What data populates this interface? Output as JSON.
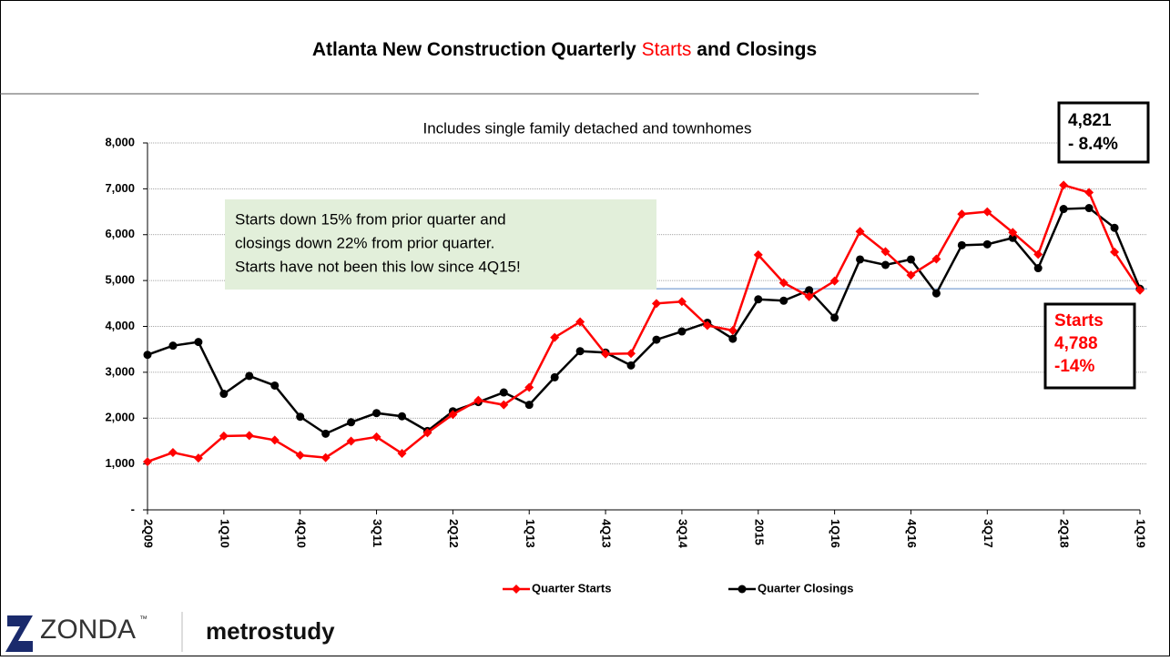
{
  "chart_data": {
    "type": "line",
    "title_parts": [
      "Atlanta New Construction Quarterly",
      "Starts",
      "and Closings"
    ],
    "subtitle": "Includes single family detached and townhomes",
    "categories": [
      "2Q09",
      null,
      null,
      "1Q10",
      null,
      null,
      "4Q10",
      null,
      null,
      "3Q11",
      null,
      null,
      "2Q12",
      null,
      null,
      "1Q13",
      null,
      null,
      "4Q13",
      null,
      null,
      "3Q14",
      null,
      null,
      "2015",
      null,
      null,
      "1Q16",
      null,
      null,
      "4Q16",
      null,
      null,
      "3Q17",
      null,
      null,
      "2Q18",
      null,
      null,
      "1Q19"
    ],
    "series": [
      {
        "name": "Quarter Starts",
        "color": "#ff0000",
        "marker": "diamond",
        "values": [
          1050,
          1250,
          1130,
          1610,
          1620,
          1520,
          1190,
          1140,
          1500,
          1590,
          1230,
          1680,
          2080,
          2390,
          2290,
          2670,
          3760,
          4100,
          3400,
          3410,
          4500,
          4540,
          4020,
          3910,
          5560,
          4950,
          4650,
          4990,
          6070,
          5630,
          5120,
          5470,
          6450,
          6500,
          6050,
          5570,
          7080,
          6920,
          5620,
          4788
        ]
      },
      {
        "name": "Quarter Closings",
        "color": "#000000",
        "marker": "circle",
        "values": [
          3380,
          3580,
          3660,
          2530,
          2920,
          2710,
          2030,
          1660,
          1910,
          2110,
          2040,
          1720,
          2150,
          2350,
          2560,
          2290,
          2890,
          3460,
          3430,
          3150,
          3710,
          3890,
          4080,
          3730,
          4590,
          4560,
          4790,
          4190,
          5460,
          5340,
          5460,
          4720,
          5770,
          5790,
          5930,
          5270,
          6560,
          6580,
          6150,
          4821
        ]
      }
    ],
    "ylim": [
      0,
      8000
    ],
    "yticks": [
      {
        "value": 0,
        "label": "-"
      },
      {
        "value": 1000,
        "label": "1,000"
      },
      {
        "value": 2000,
        "label": "2,000"
      },
      {
        "value": 3000,
        "label": "3,000"
      },
      {
        "value": 4000,
        "label": "4,000"
      },
      {
        "value": 5000,
        "label": "5,000"
      },
      {
        "value": 6000,
        "label": "6,000"
      },
      {
        "value": 7000,
        "label": "7,000"
      },
      {
        "value": 8000,
        "label": "8,000"
      }
    ],
    "grid": true,
    "reference_line": 4821,
    "legend": "bottom",
    "annotations": {
      "note": [
        "Starts down 15% from prior quarter and",
        "closings down 22% from prior quarter.",
        "Starts have not been this low since 4Q15!"
      ],
      "closings_box": [
        "4,821",
        "- 8.4%"
      ],
      "starts_box": [
        "Starts",
        "4,788",
        "-14%"
      ]
    }
  },
  "logo": {
    "brand": "ZONDA",
    "trademark": "™",
    "partner": "metrostudy"
  }
}
